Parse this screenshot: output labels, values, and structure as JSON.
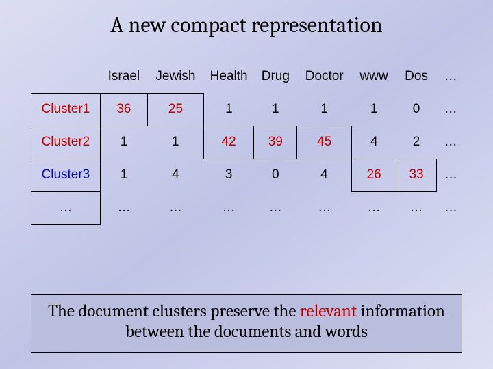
{
  "title": "A new compact representation",
  "table": {
    "columns": [
      "Israel",
      "Jewish",
      "Health",
      "Drug",
      "Doctor",
      "www",
      "Dos",
      "…"
    ],
    "rows": [
      {
        "label": "Cluster1",
        "label_color": "#c00000",
        "cells": [
          {
            "val": "36",
            "highlight": true
          },
          {
            "val": "25",
            "highlight": true
          },
          {
            "val": "1",
            "highlight": false
          },
          {
            "val": "1",
            "highlight": false
          },
          {
            "val": "1",
            "highlight": false
          },
          {
            "val": "1",
            "highlight": false
          },
          {
            "val": "0",
            "highlight": false
          },
          {
            "val": "…",
            "highlight": false
          }
        ]
      },
      {
        "label": "Cluster2",
        "label_color": "#c00000",
        "cells": [
          {
            "val": "1",
            "highlight": false
          },
          {
            "val": "1",
            "highlight": false
          },
          {
            "val": "42",
            "highlight": true
          },
          {
            "val": "39",
            "highlight": true
          },
          {
            "val": "45",
            "highlight": true
          },
          {
            "val": "4",
            "highlight": false
          },
          {
            "val": "2",
            "highlight": false
          },
          {
            "val": "…",
            "highlight": false
          }
        ]
      },
      {
        "label": "Cluster3",
        "label_color": "#0000c0",
        "cells": [
          {
            "val": "1",
            "highlight": false
          },
          {
            "val": "4",
            "highlight": false
          },
          {
            "val": "3",
            "highlight": false
          },
          {
            "val": "0",
            "highlight": false
          },
          {
            "val": "4",
            "highlight": false
          },
          {
            "val": "26",
            "highlight": true
          },
          {
            "val": "33",
            "highlight": true
          },
          {
            "val": "…",
            "highlight": false
          }
        ]
      },
      {
        "label": "…",
        "label_color": "#000000",
        "cells": [
          {
            "val": "…",
            "highlight": false
          },
          {
            "val": "…",
            "highlight": false
          },
          {
            "val": "…",
            "highlight": false
          },
          {
            "val": "…",
            "highlight": false
          },
          {
            "val": "…",
            "highlight": false
          },
          {
            "val": "…",
            "highlight": false
          },
          {
            "val": "…",
            "highlight": false
          },
          {
            "val": "…",
            "highlight": false
          }
        ]
      }
    ]
  },
  "caption": {
    "prefix": "The document clusters preserve the ",
    "relevant": "relevant",
    "suffix": " information between the documents and words"
  },
  "style": {
    "highlight_color": "#c00000",
    "border_color": "#000000",
    "body_gradient_from": "#dbdef2",
    "body_gradient_to": "#bfc4e6",
    "title_fontsize": 32,
    "caption_fontsize": 25,
    "table_fontsize": 19
  }
}
